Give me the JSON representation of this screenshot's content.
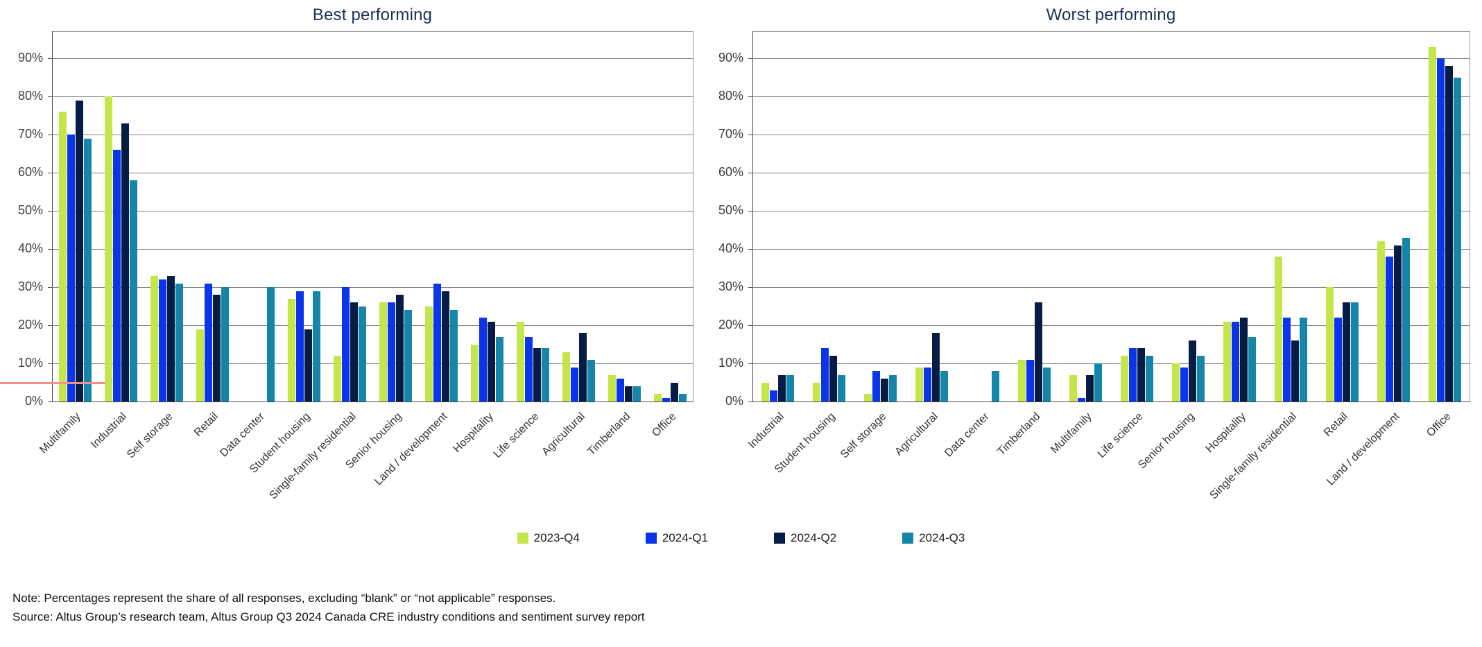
{
  "legend": [
    {
      "label": "2023-Q4",
      "color": "#c4e64b"
    },
    {
      "label": "2024-Q1",
      "color": "#0b35ec"
    },
    {
      "label": "2024-Q2",
      "color": "#071c44"
    },
    {
      "label": "2024-Q3",
      "color": "#1586a9"
    }
  ],
  "note": {
    "line1": "Note: Percentages represent the share of all responses, excluding “blank” or “not applicable” responses.",
    "line2": "Source: Altus Group’s research team, Altus Group Q3 2024 Canada CRE industry conditions and sentiment survey report"
  },
  "annotation": {
    "pink_line_color": "#f2908e"
  },
  "chart_data": [
    {
      "type": "bar",
      "title": "Best performing",
      "ylim": [
        0,
        90
      ],
      "y_ticks": [
        "0%",
        "10%",
        "20%",
        "30%",
        "40%",
        "50%",
        "60%",
        "70%",
        "80%",
        "90%"
      ],
      "grid": true,
      "legend_position": "bottom-center",
      "categories": [
        "Multifamily",
        "Industrial",
        "Self storage",
        "Retail",
        "Data center",
        "Student housing",
        "Single-family residential",
        "Senior housing",
        "Land / development",
        "Hospitality",
        "Life science",
        "Agricultural",
        "Timberland",
        "Office"
      ],
      "series": [
        {
          "name": "2023-Q4",
          "color": "#c4e64b",
          "values": [
            76,
            80,
            33,
            19,
            0,
            27,
            12,
            26,
            25,
            15,
            21,
            13,
            7,
            2
          ]
        },
        {
          "name": "2024-Q1",
          "color": "#0b35ec",
          "values": [
            70,
            66,
            32,
            31,
            0,
            29,
            30,
            26,
            31,
            22,
            17,
            9,
            6,
            1
          ]
        },
        {
          "name": "2024-Q2",
          "color": "#071c44",
          "values": [
            79,
            73,
            33,
            28,
            0,
            19,
            26,
            28,
            29,
            21,
            14,
            18,
            4,
            5
          ]
        },
        {
          "name": "2024-Q3",
          "color": "#1586a9",
          "values": [
            69,
            58,
            31,
            30,
            30,
            29,
            25,
            24,
            24,
            17,
            14,
            11,
            4,
            2
          ]
        }
      ]
    },
    {
      "type": "bar",
      "title": "Worst performing",
      "ylim": [
        0,
        90
      ],
      "y_ticks": [
        "0%",
        "10%",
        "20%",
        "30%",
        "40%",
        "50%",
        "60%",
        "70%",
        "80%",
        "90%"
      ],
      "grid": true,
      "legend_position": "bottom-center",
      "categories": [
        "Industrial",
        "Student housing",
        "Self storage",
        "Agricultural",
        "Data center",
        "Timberland",
        "Multifamily",
        "Life science",
        "Senior housing",
        "Hospitality",
        "Single-family residential",
        "Retail",
        "Land / development",
        "Office"
      ],
      "series": [
        {
          "name": "2023-Q4",
          "color": "#c4e64b",
          "values": [
            5,
            5,
            2,
            9,
            0,
            11,
            7,
            12,
            10,
            21,
            38,
            30,
            42,
            93
          ]
        },
        {
          "name": "2024-Q1",
          "color": "#0b35ec",
          "values": [
            3,
            14,
            8,
            9,
            0,
            11,
            1,
            14,
            9,
            21,
            22,
            22,
            38,
            90
          ]
        },
        {
          "name": "2024-Q2",
          "color": "#071c44",
          "values": [
            7,
            12,
            6,
            18,
            0,
            26,
            7,
            14,
            16,
            22,
            16,
            26,
            41,
            88
          ]
        },
        {
          "name": "2024-Q3",
          "color": "#1586a9",
          "values": [
            7,
            7,
            7,
            8,
            8,
            9,
            10,
            12,
            12,
            17,
            22,
            26,
            43,
            85
          ]
        }
      ]
    }
  ]
}
